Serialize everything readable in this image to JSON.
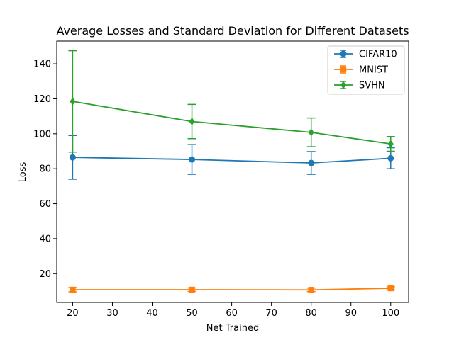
{
  "chart_data": {
    "type": "line",
    "title": "Average Losses and Standard Deviation for Different Datasets",
    "xlabel": "Net Trained",
    "ylabel": "Loss",
    "x": [
      20,
      50,
      80,
      100
    ],
    "xlim": [
      16,
      104.5
    ],
    "ylim": [
      3.5,
      153
    ],
    "xticks": [
      20,
      30,
      40,
      50,
      60,
      70,
      80,
      90,
      100
    ],
    "yticks": [
      20,
      40,
      60,
      80,
      100,
      120,
      140
    ],
    "grid": false,
    "legend_position": "top-right",
    "series": [
      {
        "name": "CIFAR10",
        "color": "#1f77b4",
        "marker": "circle",
        "values": [
          86.5,
          85.3,
          83.3,
          86.0
        ],
        "errors": [
          12.5,
          8.5,
          6.5,
          6.0
        ]
      },
      {
        "name": "MNIST",
        "color": "#ff7f0e",
        "marker": "square",
        "values": [
          10.8,
          10.8,
          10.7,
          11.6
        ],
        "errors": [
          1.2,
          1.0,
          1.0,
          0.8
        ]
      },
      {
        "name": "SVHN",
        "color": "#2ca02c",
        "marker": "diamond",
        "values": [
          118.5,
          107.0,
          100.8,
          94.2
        ],
        "errors": [
          29.0,
          9.8,
          8.2,
          4.2
        ]
      }
    ]
  }
}
